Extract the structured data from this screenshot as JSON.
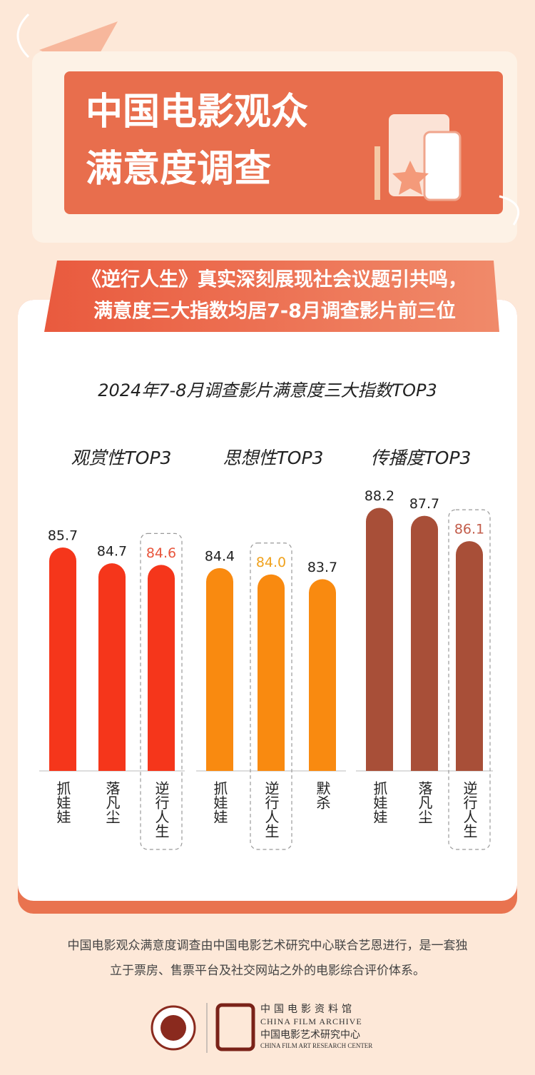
{
  "header": {
    "title_lines": [
      "中国电影观众",
      "满意度调查"
    ],
    "subtitle_lines": [
      "《逆行人生》真实深刻展现社会议题引共鸣，",
      "满意度三大指数均居7-8月调查影片前三位"
    ]
  },
  "figure_title": "2024年7-8月调查影片满意度三大指数TOP3",
  "chart_data": [
    {
      "type": "bar",
      "title": "观赏性TOP3",
      "categories": [
        "抓娃娃",
        "落凡尘",
        "逆行人生"
      ],
      "values": [
        85.7,
        84.7,
        84.6
      ],
      "value_labels": [
        "85.7",
        "84.7",
        "84.6"
      ],
      "color": "#f5361b",
      "highlight_color": "#e8553c",
      "highlight_index": 2,
      "ylim": [
        71.6,
        88.6
      ]
    },
    {
      "type": "bar",
      "title": "思想性TOP3",
      "categories": [
        "抓娃娃",
        "逆行人生",
        "默杀"
      ],
      "values": [
        84.4,
        84,
        83.7
      ],
      "value_labels": [
        "84.4",
        "84.0",
        "83.7"
      ],
      "color": "#f98a10",
      "highlight_color": "#f0a21e",
      "highlight_index": 1,
      "ylim": [
        71.6,
        88.6
      ]
    },
    {
      "type": "bar",
      "title": "传播度TOP3",
      "categories": [
        "抓娃娃",
        "落凡尘",
        "逆行人生"
      ],
      "values": [
        88.2,
        87.7,
        86.1
      ],
      "value_labels": [
        "88.2",
        "87.7",
        "86.1"
      ],
      "color": "#a84f38",
      "highlight_color": "#c25c4a",
      "highlight_index": 2,
      "ylim": [
        71.6,
        88.6
      ]
    }
  ],
  "footer": {
    "note_lines": [
      "中国电影观众满意度调查由中国电影艺术研究中心联合艺恩进行，是一套独",
      "立于票房、售票平台及社交网站之外的电影综合评价体系。"
    ],
    "org_lines": [
      "中国电影资料馆",
      "CHINA FILM ARCHIVE",
      "中国电影艺术研究中心",
      "CHINA FILM ART RESEARCH CENTER"
    ]
  }
}
